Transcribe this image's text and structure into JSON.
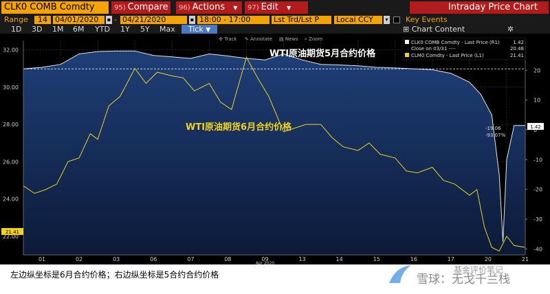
{
  "toolbar": {
    "ticker": "CLK0 COMB Comdty",
    "menus": [
      {
        "num": "95)",
        "label": "Compare"
      },
      {
        "num": "96)",
        "label": "Actions"
      },
      {
        "num": "97)",
        "label": "Edit"
      }
    ],
    "title": "Intraday Price Chart"
  },
  "range": {
    "label": "Range",
    "days": "14",
    "start": "04/01/2020",
    "end": "04/21/2020",
    "time_range": "18:00 - 17:00",
    "price_type": "Lst Trd/Lst P",
    "currency": "Local CCY",
    "key_events": "Key Events"
  },
  "periods": [
    "1D",
    "3D",
    "1M",
    "6M",
    "YTD",
    "1Y",
    "5Y",
    "Max"
  ],
  "active_period": "Tick",
  "chart_content_label": "Chart Content",
  "plot_tools": [
    "Track",
    "Annotate",
    "News",
    "Zoom"
  ],
  "legend": [
    {
      "label": "CLK0 COMB Comdty - Last Price (R1)",
      "value": "1.42",
      "color": "#ffffff"
    },
    {
      "label": "Close on 03/31 ----",
      "value": "20.48",
      "color": "#ffffff"
    },
    {
      "label": "CLM0 Comdty - Last Price (L1)",
      "value": "21.41",
      "color": "#f2d21c"
    }
  ],
  "annotations": {
    "may": "WTI原油期货5月合约价格",
    "june": "WTI原油期货6月合约价格",
    "change": "-19.06",
    "change_pct": "-93.07%",
    "right_tag": "1.42",
    "left_tag": "21.41"
  },
  "caption": "左边纵坐标是6月合约价格；右边纵坐标是5合约合约价格",
  "watermark": "雪球：无戈千兰栈",
  "watermark_sub": "基金评价笔记",
  "chart_data": {
    "type": "line",
    "x_ticks": [
      "01",
      "02",
      "03",
      "06",
      "07",
      "08",
      "09",
      "13",
      "14",
      "15",
      "16",
      "17",
      "20",
      "21"
    ],
    "x_label": "Apr 2020",
    "y_left": {
      "ticks": [
        22.0,
        24.0,
        26.0,
        28.0,
        30.0,
        32.0
      ],
      "range": [
        21.0,
        32.5
      ]
    },
    "y_right": {
      "ticks": [
        -40,
        -30,
        -20,
        -10,
        0,
        10,
        20
      ],
      "range": [
        -42,
        30
      ]
    },
    "series": [
      {
        "name": "CLK0 COMB Comdty - Last Price (R1)",
        "axis": "right",
        "color": "#e8e8e8",
        "x": [
          0.0,
          0.5,
          1.0,
          1.5,
          2.0,
          2.5,
          3.0,
          3.5,
          4.0,
          4.5,
          5.0,
          5.5,
          6.0,
          6.5,
          7.0,
          7.5,
          8.0,
          8.5,
          9.0,
          9.5,
          10.0,
          10.5,
          11.0,
          11.5,
          12.0,
          12.3,
          12.6,
          12.8,
          12.9,
          13.0,
          13.2,
          13.5
        ],
        "y": [
          20.5,
          21.0,
          22.0,
          25.5,
          26.3,
          26.5,
          26.5,
          25.0,
          24.5,
          24.0,
          25.5,
          24.8,
          24.0,
          23.5,
          25.5,
          23.5,
          22.0,
          21.8,
          21.5,
          21.0,
          20.8,
          20.5,
          20.2,
          19.0,
          16.0,
          12.0,
          5.0,
          -15.0,
          -37.6,
          -10.0,
          1.42,
          1.42
        ]
      },
      {
        "name": "CLM0 Comdty - Last Price (L1)",
        "axis": "left",
        "color": "#f2d21c",
        "x": [
          0.0,
          0.3,
          0.6,
          0.9,
          1.2,
          1.5,
          1.8,
          2.0,
          2.3,
          2.6,
          3.0,
          3.3,
          3.6,
          4.0,
          4.3,
          4.6,
          5.0,
          5.3,
          5.6,
          6.0,
          6.3,
          6.6,
          7.0,
          7.3,
          7.6,
          8.0,
          8.3,
          8.6,
          9.0,
          9.3,
          9.6,
          10.0,
          10.3,
          10.6,
          11.0,
          11.3,
          11.6,
          12.0,
          12.2,
          12.4,
          12.6,
          12.8,
          13.0,
          13.2,
          13.5
        ],
        "y": [
          24.7,
          24.3,
          24.5,
          24.8,
          26.0,
          26.2,
          27.5,
          27.2,
          29.0,
          29.5,
          31.0,
          30.2,
          30.8,
          30.6,
          30.5,
          29.8,
          30.2,
          29.2,
          28.8,
          31.6,
          30.5,
          29.5,
          27.6,
          27.8,
          28.0,
          28.0,
          27.3,
          26.8,
          26.6,
          27.0,
          26.4,
          26.2,
          25.5,
          25.4,
          25.7,
          25.0,
          24.8,
          24.2,
          24.5,
          22.5,
          21.4,
          21.2,
          22.0,
          21.5,
          21.4
        ]
      }
    ],
    "reference": {
      "name": "Close on 03/31",
      "axis": "right",
      "value": 20.48
    }
  }
}
